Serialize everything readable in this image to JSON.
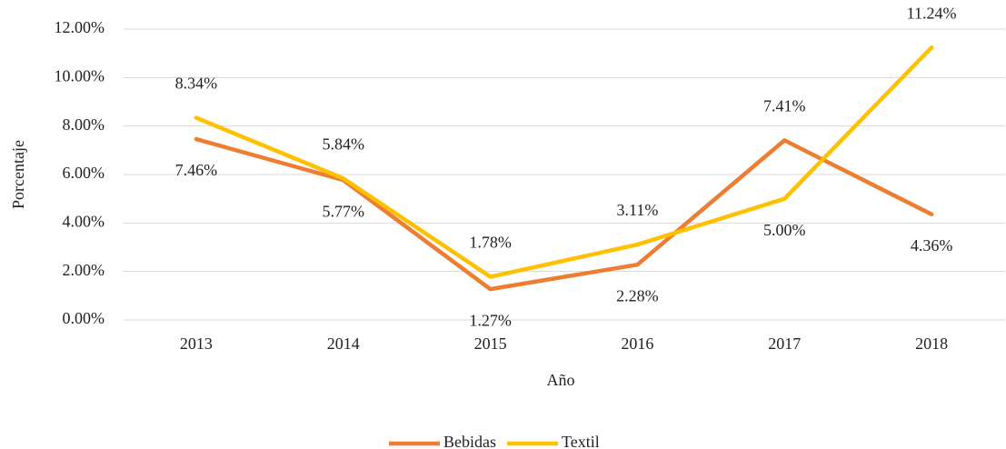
{
  "chart_data": {
    "type": "line",
    "x_label": "Año",
    "y_label": "Porcentaje",
    "categories": [
      "2013",
      "2014",
      "2015",
      "2016",
      "2017",
      "2018"
    ],
    "series": [
      {
        "name": "Bebidas",
        "color": "#ED7D31",
        "values": [
          7.46,
          5.77,
          1.27,
          2.28,
          7.41,
          4.36
        ],
        "value_labels": [
          "7.46%",
          "5.77%",
          "1.27%",
          "2.28%",
          "7.41%",
          "4.36%"
        ]
      },
      {
        "name": "Textil",
        "color": "#FFC000",
        "values": [
          8.34,
          5.84,
          1.78,
          3.11,
          5.0,
          11.24
        ],
        "value_labels": [
          "8.34%",
          "5.84%",
          "1.78%",
          "3.11%",
          "5.00%",
          "11.24%"
        ]
      }
    ],
    "ylim": [
      0,
      12
    ],
    "yticks": [
      {
        "value": 0,
        "label": "0.00%"
      },
      {
        "value": 2,
        "label": "2.00%"
      },
      {
        "value": 4,
        "label": "4.00%"
      },
      {
        "value": 6,
        "label": "6.00%"
      },
      {
        "value": 8,
        "label": "8.00%"
      },
      {
        "value": 10,
        "label": "10.00%"
      },
      {
        "value": 12,
        "label": "12.00%"
      }
    ],
    "grid": true,
    "legend": "bottom"
  }
}
